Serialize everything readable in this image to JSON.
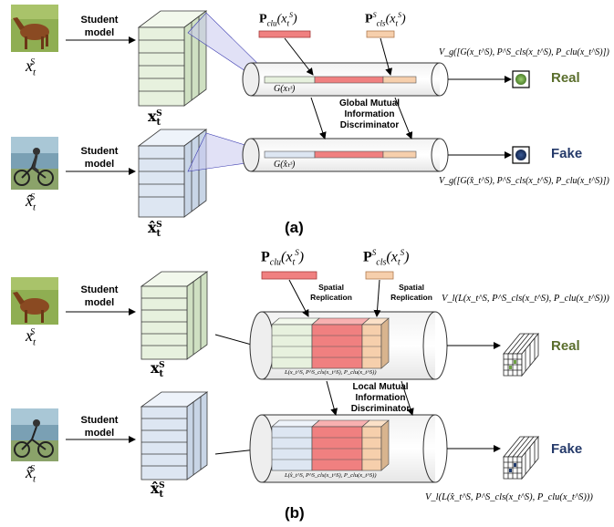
{
  "student_model_label": "Student model",
  "var_x": "x",
  "var_xhat": "x̂",
  "sub_t": "t",
  "sup_S": "S",
  "P_clu": "P",
  "P_clu_sub": "clu",
  "P_cls": "P",
  "P_cls_sub": "cls",
  "panel_a": {
    "label": "(a)",
    "discriminator": [
      "Global Mutual",
      "Information",
      "Discriminator"
    ],
    "G_real": "G(xₜˢ)",
    "G_fake": "G(x̂ₜˢ)",
    "V_real": "V_g([G(x_t^S), P^S_cls(x_t^S), P_clu(x_t^S)])",
    "V_fake": "V_g([G(x̂_t^S), P^S_cls(x_t^S), P_clu(x_t^S)])",
    "real_label": "Real",
    "fake_label": "Fake"
  },
  "panel_b": {
    "label": "(b)",
    "spatial_replication": "Spatial Replication",
    "discriminator": [
      "Local Mutual",
      "Information",
      "Discriminator"
    ],
    "L_real": "L(x_t^S, P^S_cls(x_t^S), P_clu(x_t^S))",
    "L_fake": "L(x̂_t^S, P^S_cls(x_t^S), P_clu(x_t^S))",
    "V_real": "V_l(L(x_t^S, P^S_cls(x_t^S), P_clu(x_t^S)))",
    "V_fake": "V_l(L(x̂_t^S, P^S_cls(x_t^S), P_clu(x_t^S)))",
    "real_label": "Real",
    "fake_label": "Fake"
  },
  "colors": {
    "real_text": "#5a6e2c",
    "fake_text": "#253a6a",
    "real_feature": "#e7f1de",
    "fake_feature": "#dde6f2",
    "clu_bar": "#f08080",
    "clu_bar_dark": "#c94a4a",
    "cls_bar": "#f6cfac",
    "cls_bar_dark": "#c48a5e",
    "real_node": "#6ea044",
    "fake_node": "#1f3a6e"
  }
}
